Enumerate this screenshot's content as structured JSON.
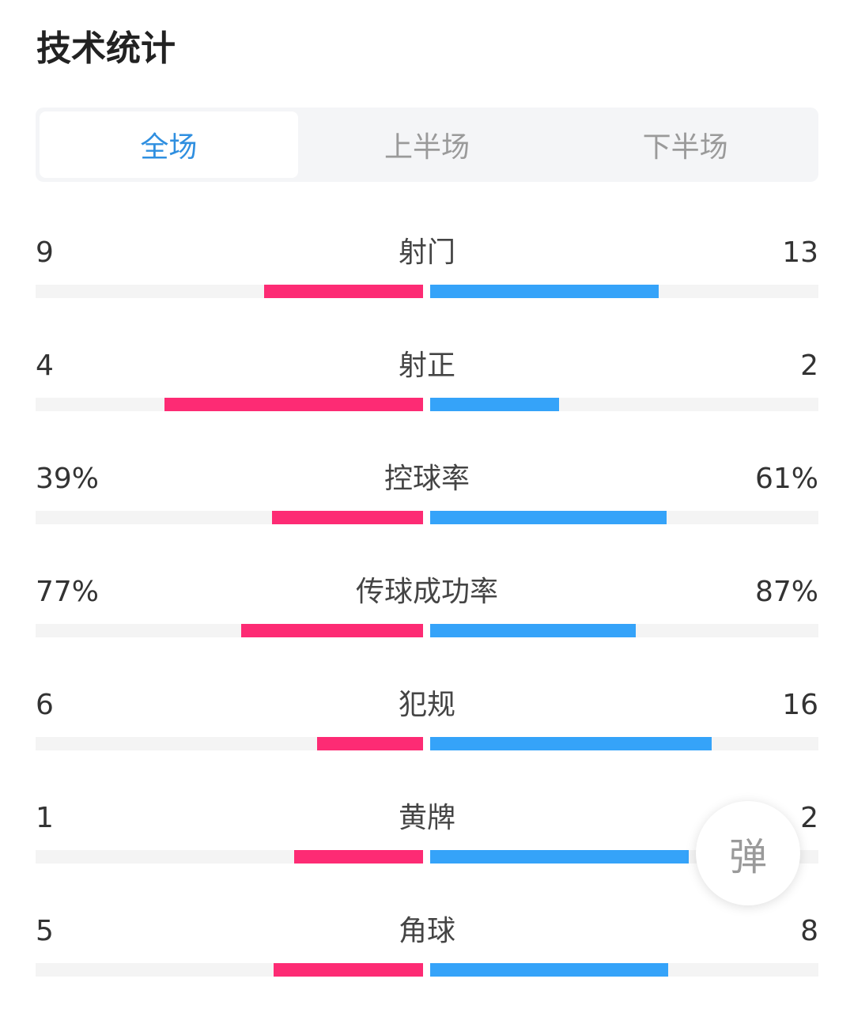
{
  "header": {
    "title": "技术统计"
  },
  "tabs": [
    {
      "label": "全场",
      "active": true
    },
    {
      "label": "上半场",
      "active": false
    },
    {
      "label": "下半场",
      "active": false
    }
  ],
  "colors": {
    "home": "#fd2b74",
    "away": "#35a3f9",
    "active_tab": "#2f8fe0"
  },
  "stats": [
    {
      "label": "射门",
      "home": "9",
      "away": "13",
      "home_ratio": 0.41,
      "away_ratio": 0.59
    },
    {
      "label": "射正",
      "home": "4",
      "away": "2",
      "home_ratio": 0.667,
      "away_ratio": 0.333
    },
    {
      "label": "控球率",
      "home": "39%",
      "away": "61%",
      "home_ratio": 0.39,
      "away_ratio": 0.61
    },
    {
      "label": "传球成功率",
      "home": "77%",
      "away": "87%",
      "home_ratio": 0.47,
      "away_ratio": 0.53
    },
    {
      "label": "犯规",
      "home": "6",
      "away": "16",
      "home_ratio": 0.273,
      "away_ratio": 0.727
    },
    {
      "label": "黄牌",
      "home": "1",
      "away": "2",
      "home_ratio": 0.333,
      "away_ratio": 0.667
    },
    {
      "label": "角球",
      "home": "5",
      "away": "8",
      "home_ratio": 0.385,
      "away_ratio": 0.615
    }
  ],
  "danmu_button": {
    "label": "弹"
  }
}
